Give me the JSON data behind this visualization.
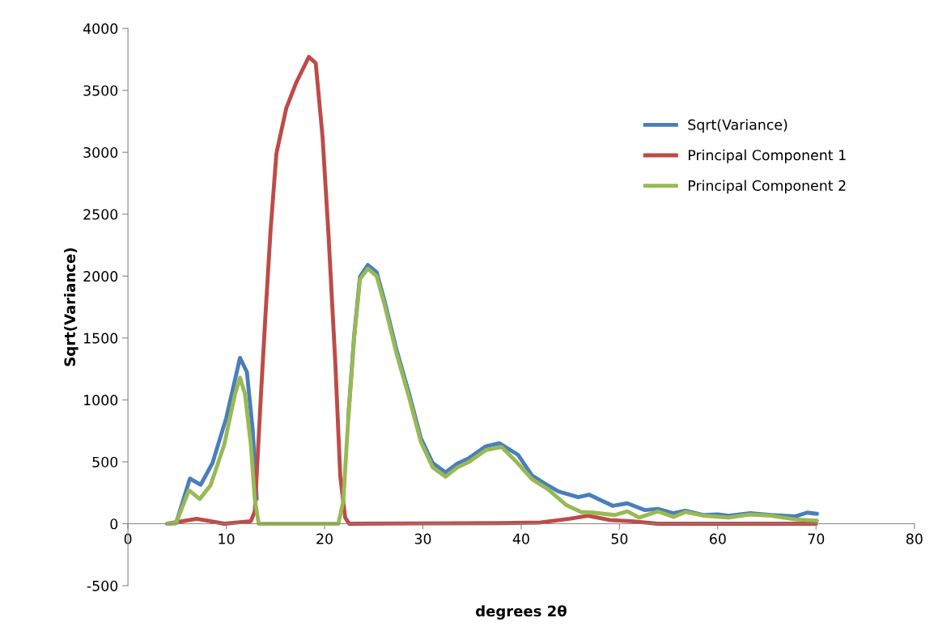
{
  "chart_data": {
    "type": "line",
    "xlabel": "degrees 2θ",
    "ylabel": "Sqrt(Variance)",
    "xlim": [
      0,
      80
    ],
    "xticks": [
      0,
      10,
      20,
      30,
      40,
      50,
      60,
      70,
      80
    ],
    "ylim": [
      -500,
      4000
    ],
    "yticks": [
      -500,
      0,
      500,
      1000,
      1500,
      2000,
      2500,
      3000,
      3500,
      4000
    ],
    "grid": false,
    "legend": "top right",
    "marker": "none",
    "line_style": "solid",
    "series": [
      {
        "name": "Sqrt(Variance)",
        "color": "#4a7ebb",
        "x": [
          4.0,
          4.9,
          6.3,
          7.4,
          8.6,
          10.0,
          11.4,
          12.1,
          12.7,
          13.1,
          17.0,
          22.4,
          23.0,
          23.6,
          24.4,
          25.3,
          26.1,
          27.3,
          28.6,
          29.8,
          31.0,
          32.3,
          33.5,
          34.7,
          36.4,
          37.8,
          39.7,
          41.1,
          42.4,
          43.8,
          45.8,
          46.9,
          49.3,
          50.8,
          52.6,
          53.9,
          55.5,
          56.7,
          58.6,
          60.0,
          61.1,
          63.3,
          65.4,
          67.9,
          69.1,
          70.1
        ],
        "values": [
          0,
          5,
          365,
          315,
          490,
          855,
          1340,
          1225,
          750,
          200,
          null,
          850,
          1510,
          1995,
          2090,
          2030,
          1800,
          1410,
          1050,
          690,
          490,
          415,
          485,
          530,
          625,
          650,
          555,
          390,
          325,
          260,
          215,
          235,
          145,
          165,
          110,
          120,
          85,
          105,
          70,
          75,
          65,
          85,
          70,
          60,
          90,
          80
        ]
      },
      {
        "name": "Principal Component 1",
        "color": "#be4b48",
        "x": [
          4.0,
          7.0,
          9.8,
          12.5,
          12.9,
          13.5,
          14.0,
          14.5,
          15.1,
          16.1,
          17.1,
          18.4,
          19.1,
          19.8,
          20.4,
          21.1,
          21.6,
          22.1,
          22.5,
          38.0,
          42.0,
          44.9,
          46.8,
          49.0,
          51.2,
          53.9,
          70.0
        ],
        "values": [
          0,
          40,
          0,
          20,
          100,
          1000,
          1700,
          2360,
          2990,
          3355,
          3560,
          3770,
          3720,
          3120,
          2335,
          1290,
          380,
          50,
          0,
          5,
          10,
          40,
          65,
          30,
          20,
          0,
          0
        ]
      },
      {
        "name": "Principal Component 2",
        "color": "#98b954",
        "x": [
          4.0,
          4.9,
          6.2,
          7.3,
          8.4,
          9.8,
          10.9,
          11.4,
          11.9,
          12.5,
          12.9,
          13.3,
          21.4,
          21.9,
          22.4,
          23.0,
          23.6,
          24.4,
          25.3,
          26.1,
          27.3,
          28.6,
          29.8,
          31.0,
          32.3,
          33.5,
          34.7,
          36.4,
          38.0,
          39.4,
          41.1,
          42.7,
          44.6,
          46.1,
          47.3,
          49.5,
          50.8,
          52.0,
          53.9,
          55.5,
          56.7,
          58.6,
          61.1,
          63.3,
          65.4,
          67.9,
          70.1
        ],
        "values": [
          0,
          5,
          270,
          200,
          310,
          640,
          1050,
          1180,
          1050,
          640,
          200,
          0,
          0,
          180,
          835,
          1490,
          1975,
          2060,
          2000,
          1770,
          1380,
          1020,
          660,
          455,
          380,
          455,
          500,
          595,
          620,
          510,
          360,
          280,
          150,
          95,
          90,
          70,
          100,
          50,
          100,
          55,
          95,
          65,
          50,
          75,
          65,
          35,
          25
        ]
      }
    ]
  }
}
